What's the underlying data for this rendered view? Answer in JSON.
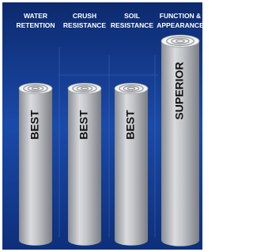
{
  "columns": [
    {
      "header": [
        "WATER",
        "RETENTION"
      ],
      "label": "BEST"
    },
    {
      "header": [
        "CRUSH",
        "RESISTANCE"
      ],
      "label": "BEST"
    },
    {
      "header": [
        "SOIL",
        "RESISTANCE"
      ],
      "label": "BEST"
    },
    {
      "header": [
        "FUNCTION &",
        "APPEARANCE"
      ],
      "label": "SUPERIOR"
    }
  ]
}
